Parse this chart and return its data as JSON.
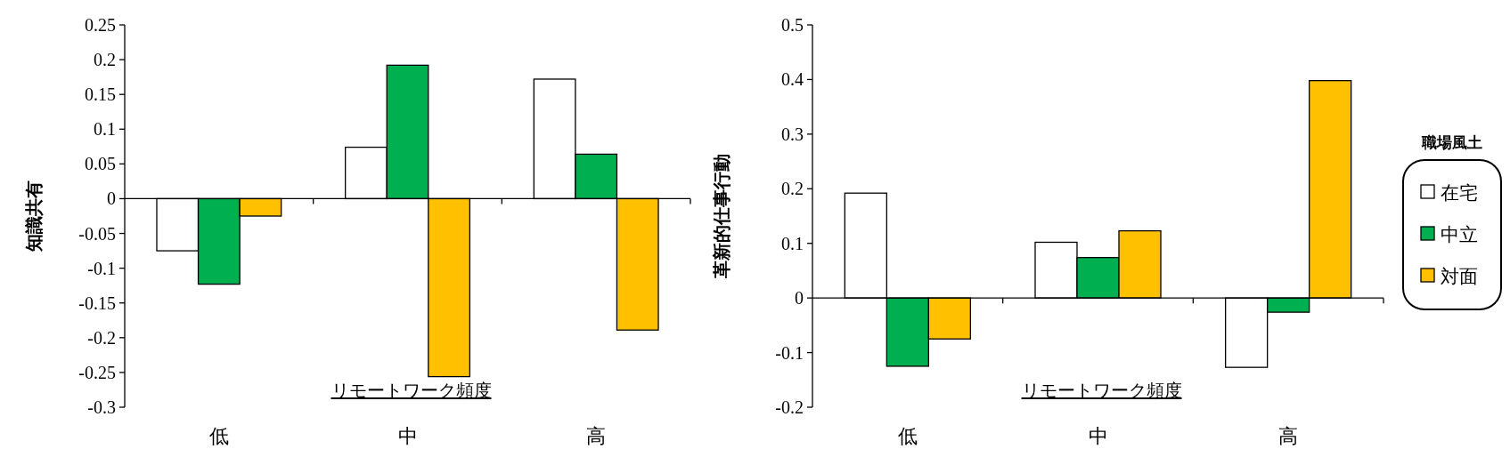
{
  "chart_data": [
    {
      "type": "bar",
      "ylabel": "知識共有",
      "xlabel": "リモートワーク頻度",
      "categories": [
        "低",
        "中",
        "高"
      ],
      "series": [
        {
          "color": "#ffffff",
          "values": [
            -0.075,
            0.074,
            0.172
          ]
        },
        {
          "color": "#00b050",
          "values": [
            -0.123,
            0.192,
            0.064
          ]
        },
        {
          "color": "#ffc000",
          "values": [
            -0.025,
            -0.256,
            -0.189
          ]
        }
      ],
      "ylim": [
        -0.3,
        0.25
      ],
      "yticks": [
        -0.3,
        -0.25,
        -0.2,
        -0.15,
        -0.1,
        -0.05,
        0,
        0.05,
        0.1,
        0.15,
        0.2,
        0.25
      ],
      "legend": false
    },
    {
      "type": "bar",
      "ylabel": "革新的仕事行動",
      "xlabel": "リモートワーク頻度",
      "legend_title": "職場風土",
      "categories": [
        "低",
        "中",
        "高"
      ],
      "series": [
        {
          "name": "在宅",
          "color": "#ffffff",
          "values": [
            0.192,
            0.102,
            -0.127
          ]
        },
        {
          "name": "中立",
          "color": "#00b050",
          "values": [
            -0.125,
            0.074,
            -0.026
          ]
        },
        {
          "name": "対面",
          "color": "#ffc000",
          "values": [
            -0.075,
            0.123,
            0.398
          ]
        }
      ],
      "ylim": [
        -0.2,
        0.5
      ],
      "yticks": [
        -0.2,
        -0.1,
        0,
        0.1,
        0.2,
        0.3,
        0.4,
        0.5
      ],
      "legend": "right"
    }
  ]
}
